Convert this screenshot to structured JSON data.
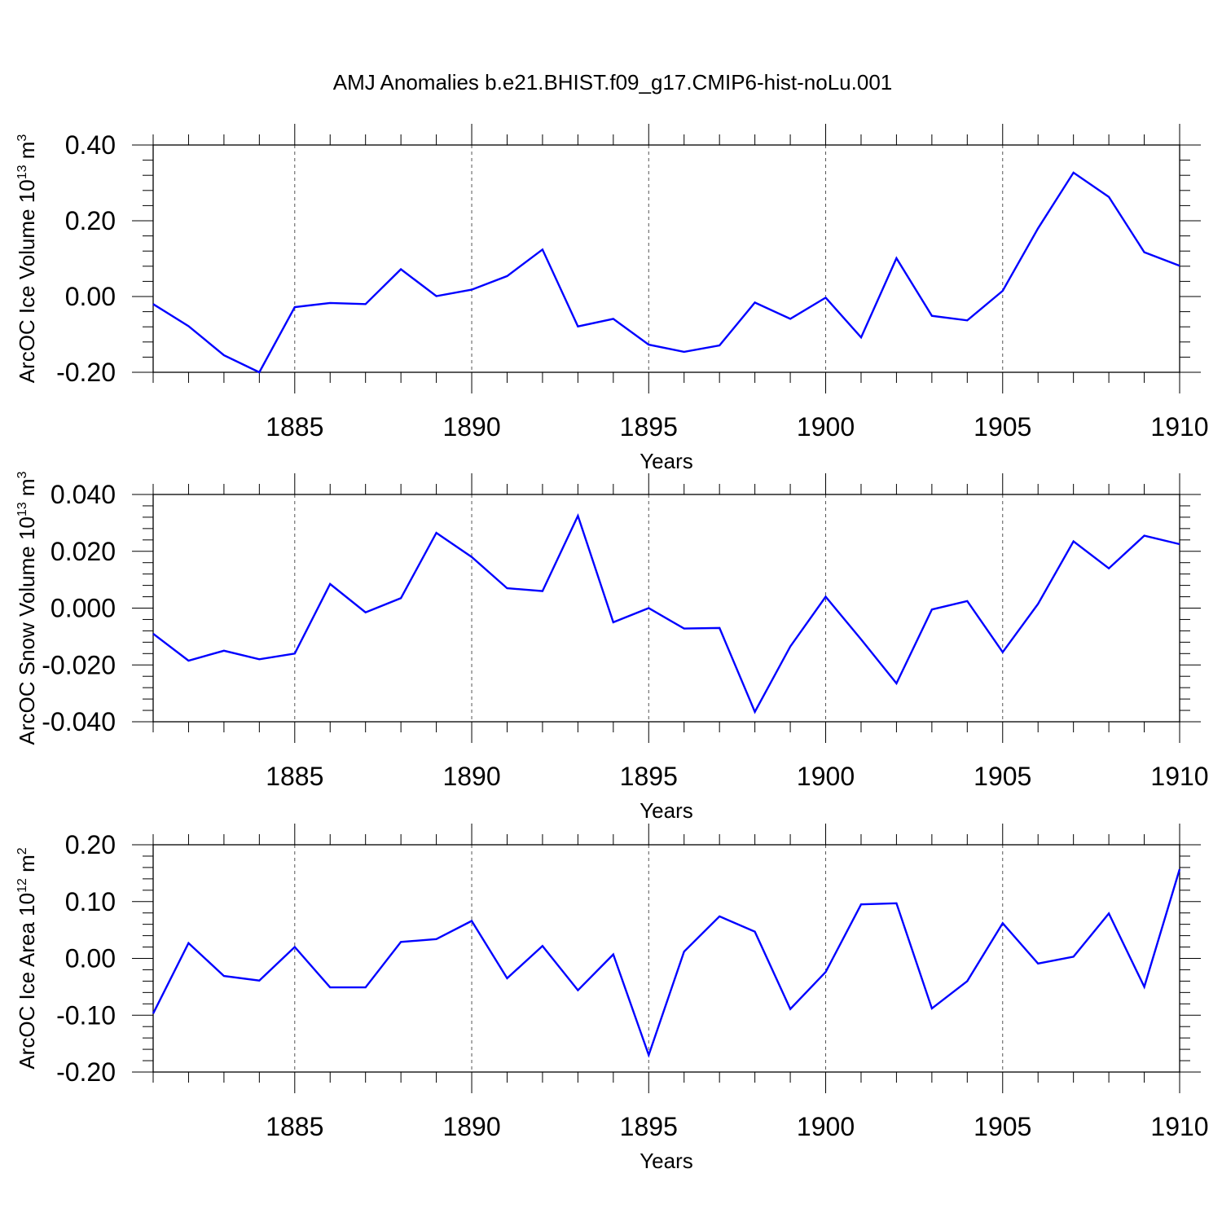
{
  "figure": {
    "title": "AMJ Anomalies b.e21.BHIST.f09_g17.CMIP6-hist-noLu.001",
    "line_color": "#0000ff",
    "axis_color": "#000000",
    "grid_color": "#555555"
  },
  "chart_data": [
    {
      "type": "line",
      "title": "AMJ Anomalies b.e21.BHIST.f09_g17.CMIP6-hist-noLu.001",
      "xlabel": "Years",
      "ylabel": {
        "base": "ArcOC Ice Volume 10",
        "exp": "13",
        "unit": " m",
        "unit_exp": "3"
      },
      "x": [
        1881,
        1882,
        1883,
        1884,
        1885,
        1886,
        1887,
        1888,
        1889,
        1890,
        1891,
        1892,
        1893,
        1894,
        1895,
        1896,
        1897,
        1898,
        1899,
        1900,
        1901,
        1902,
        1903,
        1904,
        1905,
        1906,
        1907,
        1908,
        1909,
        1910
      ],
      "series": [
        {
          "values": [
            -0.02,
            -0.078,
            -0.155,
            -0.2,
            -0.028,
            -0.017,
            -0.02,
            0.072,
            0.001,
            0.018,
            0.054,
            0.124,
            -0.079,
            -0.059,
            -0.127,
            -0.146,
            -0.129,
            -0.016,
            -0.059,
            -0.003,
            -0.108,
            0.101,
            -0.051,
            -0.063,
            0.015,
            0.18,
            0.327,
            0.263,
            0.117,
            0.081
          ]
        }
      ],
      "xlim": [
        1881,
        1910
      ],
      "ylim": [
        -0.2,
        0.4
      ],
      "yticks": [
        -0.2,
        0.0,
        0.2,
        0.4
      ],
      "ytick_labels": [
        "-0.20",
        "0.00",
        "0.20",
        "0.40"
      ],
      "xticks": [
        1885,
        1890,
        1895,
        1900,
        1905,
        1910
      ],
      "xtick_labels": [
        "1885",
        "1890",
        "1895",
        "1900",
        "1905",
        "1910"
      ],
      "grid": "vertical dashed at labeled years"
    },
    {
      "type": "line",
      "xlabel": "Years",
      "ylabel": {
        "base": "ArcOC Snow Volume 10",
        "exp": "13",
        "unit": " m",
        "unit_exp": "3"
      },
      "x": [
        1881,
        1882,
        1883,
        1884,
        1885,
        1886,
        1887,
        1888,
        1889,
        1890,
        1891,
        1892,
        1893,
        1894,
        1895,
        1896,
        1897,
        1898,
        1899,
        1900,
        1901,
        1902,
        1903,
        1904,
        1905,
        1906,
        1907,
        1908,
        1909,
        1910
      ],
      "series": [
        {
          "values": [
            -0.009,
            -0.0185,
            -0.015,
            -0.018,
            -0.016,
            0.0085,
            -0.0015,
            0.0035,
            0.0265,
            0.018,
            0.007,
            0.006,
            0.0325,
            -0.005,
            0.0,
            -0.0072,
            -0.007,
            -0.0365,
            -0.0135,
            0.004,
            -0.011,
            -0.0265,
            -0.0005,
            0.0025,
            -0.0155,
            0.0015,
            0.0235,
            0.014,
            0.0255,
            0.0225
          ]
        }
      ],
      "xlim": [
        1881,
        1910
      ],
      "ylim": [
        -0.04,
        0.04
      ],
      "yticks": [
        -0.04,
        -0.02,
        0.0,
        0.02,
        0.04
      ],
      "ytick_labels": [
        "-0.040",
        "-0.020",
        "0.000",
        "0.020",
        "0.040"
      ],
      "xticks": [
        1885,
        1890,
        1895,
        1900,
        1905,
        1910
      ],
      "xtick_labels": [
        "1885",
        "1890",
        "1895",
        "1900",
        "1905",
        "1910"
      ],
      "grid": "vertical dashed at labeled years"
    },
    {
      "type": "line",
      "xlabel": "Years",
      "ylabel": {
        "base": "ArcOC Ice Area 10",
        "exp": "12",
        "unit": " m",
        "unit_exp": "2"
      },
      "x": [
        1881,
        1882,
        1883,
        1884,
        1885,
        1886,
        1887,
        1888,
        1889,
        1890,
        1891,
        1892,
        1893,
        1894,
        1895,
        1896,
        1897,
        1898,
        1899,
        1900,
        1901,
        1902,
        1903,
        1904,
        1905,
        1906,
        1907,
        1908,
        1909,
        1910
      ],
      "series": [
        {
          "values": [
            -0.097,
            0.027,
            -0.031,
            -0.039,
            0.02,
            -0.051,
            -0.051,
            0.029,
            0.034,
            0.066,
            -0.035,
            0.022,
            -0.056,
            0.007,
            -0.17,
            0.012,
            0.074,
            0.047,
            -0.089,
            -0.024,
            0.095,
            0.097,
            -0.088,
            -0.04,
            0.062,
            -0.009,
            0.003,
            0.079,
            -0.05,
            0.157
          ]
        }
      ],
      "xlim": [
        1881,
        1910
      ],
      "ylim": [
        -0.2,
        0.2
      ],
      "yticks": [
        -0.2,
        -0.1,
        0.0,
        0.1,
        0.2
      ],
      "ytick_labels": [
        "-0.20",
        "-0.10",
        "0.00",
        "0.10",
        "0.20"
      ],
      "xticks": [
        1885,
        1890,
        1895,
        1900,
        1905,
        1910
      ],
      "xtick_labels": [
        "1885",
        "1890",
        "1895",
        "1900",
        "1905",
        "1910"
      ],
      "grid": "vertical dashed at labeled years"
    }
  ]
}
